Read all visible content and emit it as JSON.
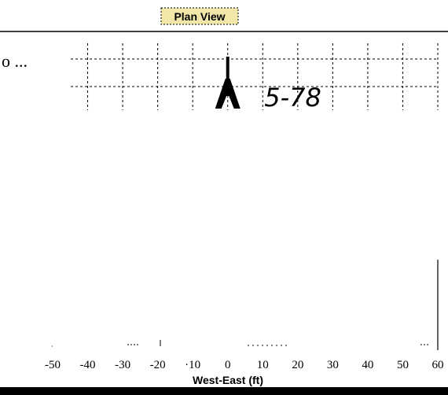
{
  "chart_data": {
    "type": "scatter",
    "title": "Plan View",
    "xlabel": "West-East (ft)",
    "ylabel": "",
    "xlim": [
      -50,
      60
    ],
    "xticks": [
      -50,
      -40,
      -30,
      -20,
      -10,
      0,
      10,
      20,
      30,
      40,
      50,
      60
    ],
    "tick_labels": [
      "-50",
      "-40",
      "-30",
      "-20",
      "·10",
      "0",
      "10",
      "20",
      "30",
      "40",
      "50",
      "60"
    ],
    "grid": true,
    "left_mark": "o ...",
    "annotations": [
      {
        "text": "5-78",
        "x": 10,
        "kind": "handwritten"
      }
    ],
    "features": [
      {
        "name": "well-symbol",
        "x": 0
      }
    ]
  },
  "colors": {
    "ink": "#000000",
    "background": "#ffffff",
    "title_highlight": "#f0e7a8"
  }
}
